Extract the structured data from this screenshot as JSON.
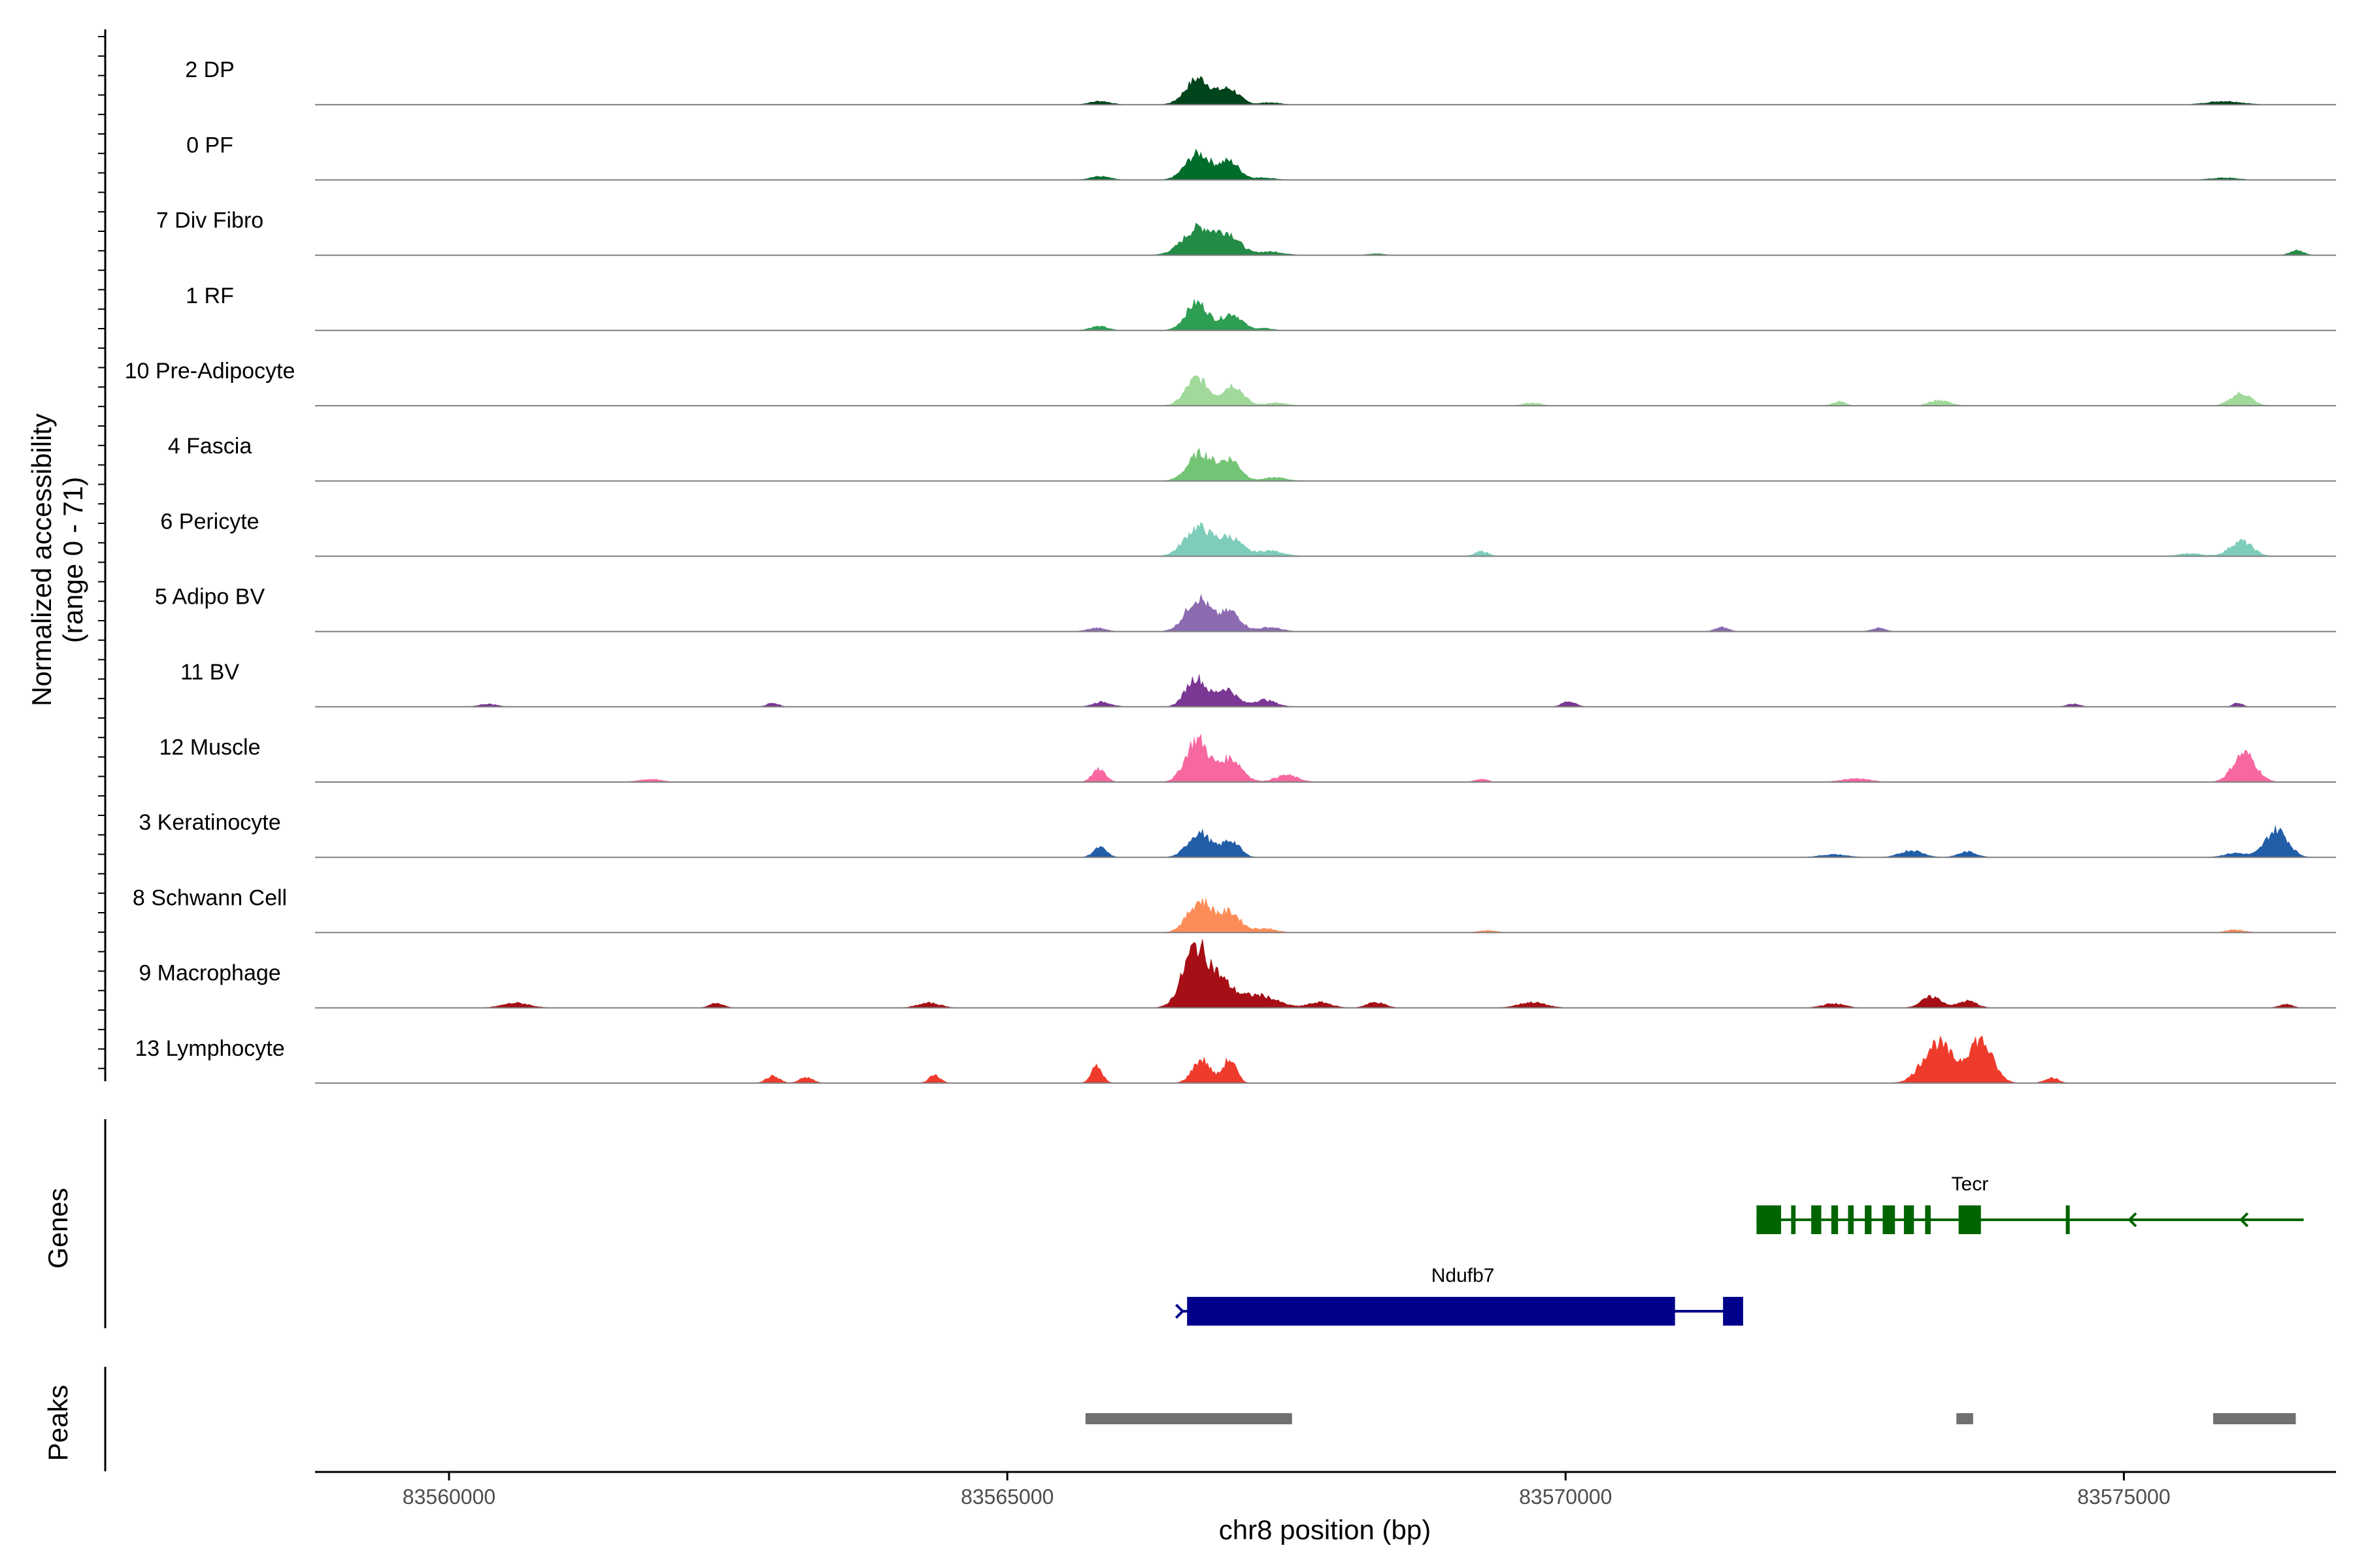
{
  "chart_data": {
    "type": "area",
    "chromosome": "chr8",
    "xlabel": "chr8 position (bp)",
    "xlim": [
      83558800,
      83576900
    ],
    "x_ticks": [
      83560000,
      83565000,
      83570000,
      83575000
    ],
    "x_tick_labels": [
      "83560000",
      "83565000",
      "83570000",
      "83575000"
    ],
    "coverage_ylabel_line1": "Normalized accessibility",
    "coverage_ylabel_line2": "(range 0 - 71)",
    "coverage_range": [
      0,
      71
    ],
    "genes_ylabel": "Genes",
    "peaks_ylabel": "Peaks",
    "tracks": [
      {
        "name": "2 DP",
        "color": "#00441b",
        "peaks": [
          [
            83566710,
            0.38,
            110
          ],
          [
            83566990,
            0.22,
            90
          ],
          [
            83565830,
            0.05,
            90
          ],
          [
            83567350,
            0.03,
            90
          ],
          [
            83575900,
            0.05,
            150
          ]
        ]
      },
      {
        "name": "0 PF",
        "color": "#006d2c",
        "peaks": [
          [
            83566710,
            0.38,
            110
          ],
          [
            83566990,
            0.26,
            90
          ],
          [
            83565830,
            0.05,
            90
          ],
          [
            83567300,
            0.03,
            100
          ],
          [
            83575900,
            0.03,
            120
          ]
        ]
      },
      {
        "name": "7 Div Fibro",
        "color": "#238b45",
        "peaks": [
          [
            83566720,
            0.4,
            140
          ],
          [
            83566990,
            0.26,
            100
          ],
          [
            83567350,
            0.05,
            120
          ],
          [
            83576550,
            0.07,
            60
          ],
          [
            83568300,
            0.02,
            80
          ]
        ]
      },
      {
        "name": "1 RF",
        "color": "#2e9e52",
        "peaks": [
          [
            83566700,
            0.4,
            100
          ],
          [
            83567010,
            0.24,
            90
          ],
          [
            83565820,
            0.06,
            80
          ],
          [
            83567300,
            0.03,
            80
          ]
        ]
      },
      {
        "name": "10 Pre-Adipocyte",
        "color": "#a1d99b",
        "peaks": [
          [
            83566700,
            0.4,
            100
          ],
          [
            83567020,
            0.3,
            90
          ],
          [
            83567400,
            0.04,
            100
          ],
          [
            83576050,
            0.18,
            90
          ],
          [
            83573350,
            0.08,
            90
          ],
          [
            83572450,
            0.06,
            60
          ],
          [
            83569700,
            0.04,
            80
          ]
        ]
      },
      {
        "name": "4 Fascia",
        "color": "#74c476",
        "peaks": [
          [
            83566730,
            0.4,
            110
          ],
          [
            83567000,
            0.3,
            90
          ],
          [
            83567400,
            0.05,
            100
          ]
        ]
      },
      {
        "name": "6 Pericyte",
        "color": "#7ecdbb",
        "peaks": [
          [
            83566710,
            0.42,
            120
          ],
          [
            83567000,
            0.26,
            100
          ],
          [
            83567350,
            0.08,
            120
          ],
          [
            83576050,
            0.22,
            100
          ],
          [
            83569250,
            0.07,
            60
          ],
          [
            83575600,
            0.04,
            100
          ]
        ]
      },
      {
        "name": "5 Adipo BV",
        "color": "#8c6bb1",
        "peaks": [
          [
            83566710,
            0.48,
            110
          ],
          [
            83567000,
            0.28,
            90
          ],
          [
            83565800,
            0.05,
            80
          ],
          [
            83567350,
            0.06,
            100
          ],
          [
            83571400,
            0.06,
            60
          ],
          [
            83572800,
            0.05,
            60
          ]
        ]
      },
      {
        "name": "11 BV",
        "color": "#7a3794",
        "peaks": [
          [
            83566690,
            0.42,
            90
          ],
          [
            83566960,
            0.26,
            90
          ],
          [
            83567300,
            0.1,
            100
          ],
          [
            83565850,
            0.07,
            80
          ],
          [
            83570030,
            0.08,
            60
          ],
          [
            83562900,
            0.06,
            50
          ],
          [
            83576020,
            0.06,
            40
          ],
          [
            83574550,
            0.04,
            60
          ],
          [
            83560350,
            0.04,
            80
          ]
        ]
      },
      {
        "name": "12 Muscle",
        "color": "#f768a1",
        "peaks": [
          [
            83566700,
            0.62,
            100
          ],
          [
            83567000,
            0.34,
            100
          ],
          [
            83565820,
            0.18,
            60
          ],
          [
            83576080,
            0.42,
            100
          ],
          [
            83567500,
            0.1,
            100
          ],
          [
            83561800,
            0.04,
            100
          ],
          [
            83572600,
            0.05,
            120
          ],
          [
            83569250,
            0.04,
            60
          ]
        ]
      },
      {
        "name": "3 Keratinocyte",
        "color": "#225ea8",
        "peaks": [
          [
            83566720,
            0.36,
            100
          ],
          [
            83567000,
            0.24,
            80
          ],
          [
            83565830,
            0.14,
            60
          ],
          [
            83576370,
            0.4,
            100
          ],
          [
            83573100,
            0.1,
            100
          ],
          [
            83573600,
            0.08,
            80
          ],
          [
            83572400,
            0.04,
            120
          ],
          [
            83576000,
            0.06,
            100
          ]
        ]
      },
      {
        "name": "8 Schwann Cell",
        "color": "#fc8d59",
        "peaks": [
          [
            83566730,
            0.46,
            110
          ],
          [
            83567000,
            0.28,
            90
          ],
          [
            83567300,
            0.06,
            100
          ],
          [
            83576000,
            0.04,
            80
          ],
          [
            83569300,
            0.03,
            80
          ]
        ]
      },
      {
        "name": "9 Macrophage",
        "color": "#a50f15",
        "peaks": [
          [
            83566680,
            0.82,
            110
          ],
          [
            83566900,
            0.36,
            120
          ],
          [
            83567250,
            0.18,
            160
          ],
          [
            83567800,
            0.08,
            100
          ],
          [
            83568300,
            0.08,
            80
          ],
          [
            83573280,
            0.16,
            90
          ],
          [
            83573600,
            0.1,
            80
          ],
          [
            83560600,
            0.07,
            120
          ],
          [
            83562400,
            0.07,
            60
          ],
          [
            83569700,
            0.08,
            120
          ],
          [
            83564300,
            0.07,
            100
          ],
          [
            83572400,
            0.06,
            100
          ],
          [
            83576450,
            0.05,
            60
          ]
        ]
      },
      {
        "name": "13 Lymphocyte",
        "color": "#ef3b2c",
        "peaks": [
          [
            83566740,
            0.34,
            80
          ],
          [
            83566990,
            0.34,
            60
          ],
          [
            83573330,
            0.58,
            130
          ],
          [
            83573710,
            0.62,
            110
          ],
          [
            83565800,
            0.24,
            50
          ],
          [
            83564350,
            0.12,
            50
          ],
          [
            83562900,
            0.1,
            60
          ],
          [
            83563200,
            0.08,
            60
          ],
          [
            83574350,
            0.08,
            60
          ]
        ]
      }
    ],
    "genes": [
      {
        "name": "Tecr",
        "strand": "-",
        "color": "#006400",
        "start": 83571710,
        "end": 83576610,
        "exons": [
          [
            83571710,
            83571930
          ],
          [
            83572020,
            83572060
          ],
          [
            83572200,
            83572290
          ],
          [
            83572380,
            83572440
          ],
          [
            83572530,
            83572580
          ],
          [
            83572680,
            83572740
          ],
          [
            83572840,
            83572950
          ],
          [
            83573030,
            83573120
          ],
          [
            83573220,
            83573270
          ],
          [
            83573520,
            83573720
          ],
          [
            83574480,
            83574510
          ]
        ]
      },
      {
        "name": "Ndufb7",
        "strand": "+",
        "color": "#00008b",
        "start": 83566570,
        "end": 83571590,
        "exons": [
          [
            83566610,
            83570980
          ],
          [
            83571410,
            83571590
          ]
        ]
      }
    ],
    "peaks": [
      [
        83565700,
        83567550
      ],
      [
        83573500,
        83573650
      ],
      [
        83575800,
        83576540
      ]
    ]
  }
}
